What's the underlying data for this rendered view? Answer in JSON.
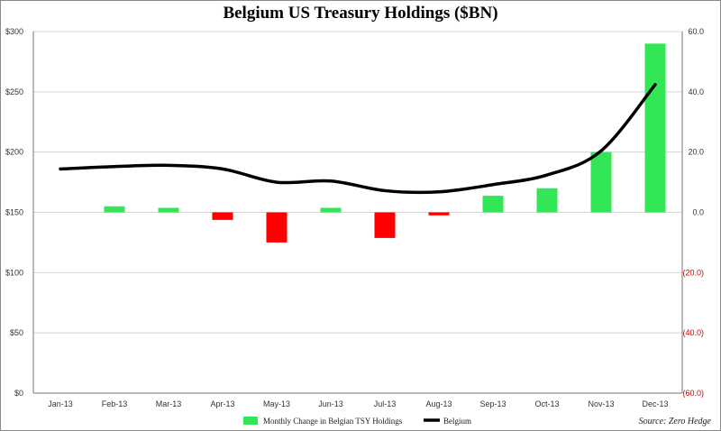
{
  "chart_data": {
    "type": "bar",
    "title": "Belgium US Treasury Holdings ($BN)",
    "categories": [
      "Jan-13",
      "Feb-13",
      "Mar-13",
      "Apr-13",
      "May-13",
      "Jun-13",
      "Jul-13",
      "Aug-13",
      "Sep-13",
      "Oct-13",
      "Nov-13",
      "Dec-13"
    ],
    "left_axis": {
      "ticks": [
        "$0",
        "$50",
        "$100",
        "$150",
        "$200",
        "$250",
        "$300"
      ],
      "ylim": [
        0,
        300
      ]
    },
    "right_axis": {
      "ticks": [
        "(60.0)",
        "(40.0)",
        "(20.0)",
        "0.0",
        "20.0",
        "40.0",
        "60.0"
      ],
      "tick_colors": [
        "#cc0000",
        "#cc0000",
        "#cc0000",
        "#333333",
        "#333333",
        "#333333",
        "#333333"
      ],
      "ylim": [
        -60,
        60
      ]
    },
    "series": [
      {
        "name": "Monthly Change in Belgian TSY Holdings",
        "type": "bar",
        "axis": "right",
        "values": [
          null,
          2,
          1.5,
          -2.5,
          -10,
          1.5,
          -8.5,
          -1,
          5.5,
          8,
          20,
          56
        ],
        "color_positive": "#33e655",
        "color_negative": "#ff0000"
      },
      {
        "name": "Belgium",
        "type": "line",
        "axis": "left",
        "values": [
          186,
          188,
          189,
          186,
          175,
          176,
          168,
          167,
          173,
          181,
          201,
          256
        ],
        "color": "#000000"
      }
    ],
    "grid": "horizontal",
    "legend": "bottom-center",
    "source": "Source: Zero Hedge"
  }
}
